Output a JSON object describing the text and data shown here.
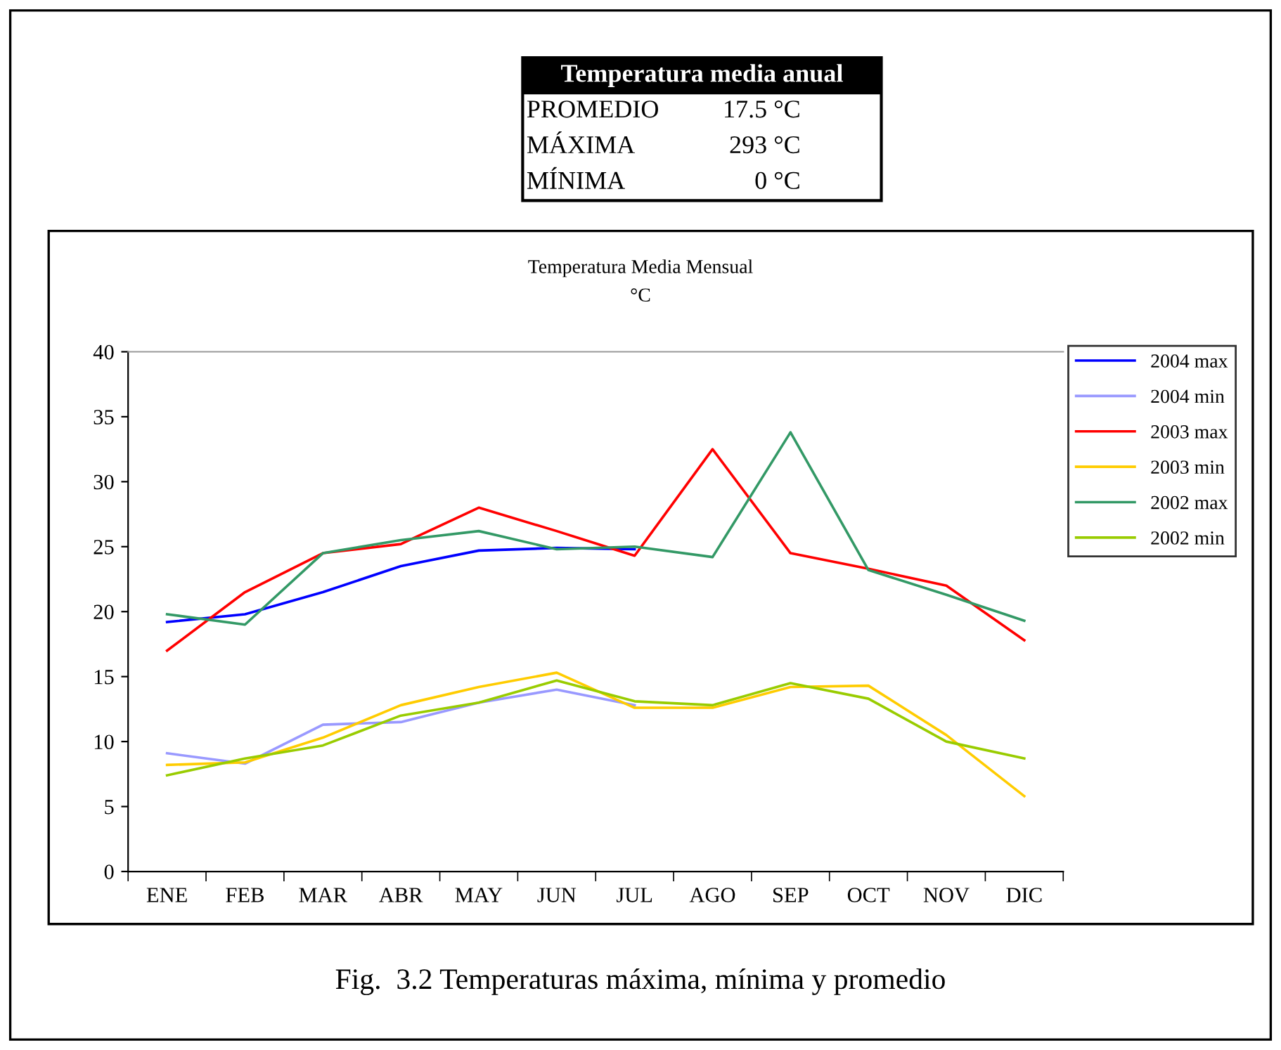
{
  "chart_data": {
    "type": "line",
    "title": "Temperatura Media Mensual",
    "subtitle": "°C",
    "categories": [
      "ENE",
      "FEB",
      "MAR",
      "ABR",
      "MAY",
      "JUN",
      "JUL",
      "AGO",
      "SEP",
      "OCT",
      "NOV",
      "DIC"
    ],
    "series": [
      {
        "name": "2004 max",
        "color": "#0000ff",
        "values": [
          19.2,
          19.8,
          21.5,
          23.5,
          24.7,
          24.9,
          24.8,
          null,
          null,
          null,
          null,
          null
        ]
      },
      {
        "name": "2004 min",
        "color": "#9999ff",
        "values": [
          9.1,
          8.3,
          11.3,
          11.5,
          13.0,
          14.0,
          12.8,
          null,
          null,
          null,
          null,
          null
        ]
      },
      {
        "name": "2003 max",
        "color": "#ff0000",
        "values": [
          17.0,
          21.5,
          24.5,
          25.2,
          28.0,
          26.2,
          24.3,
          32.5,
          24.5,
          23.3,
          22.0,
          17.8
        ]
      },
      {
        "name": "2003 min",
        "color": "#ffcc00",
        "values": [
          8.2,
          8.4,
          10.3,
          12.8,
          14.2,
          15.3,
          12.6,
          12.6,
          14.2,
          14.3,
          10.5,
          5.8
        ]
      },
      {
        "name": "2002 max",
        "color": "#339966",
        "values": [
          19.8,
          19.0,
          24.5,
          25.5,
          26.2,
          24.8,
          25.0,
          24.2,
          33.8,
          23.2,
          21.3,
          19.3
        ]
      },
      {
        "name": "2002 min",
        "color": "#99cc00",
        "values": [
          7.4,
          8.7,
          9.7,
          12.0,
          13.0,
          14.7,
          13.1,
          12.8,
          14.5,
          13.3,
          10.0,
          8.7
        ]
      }
    ],
    "ylim": [
      0,
      40
    ],
    "yticks": [
      0,
      5,
      10,
      15,
      20,
      25,
      30,
      35,
      40
    ],
    "grid": false,
    "legend": "top right",
    "marker": "none",
    "line_style": "solid",
    "annotations": [
      "Temperatura media anual",
      "PROMEDIO",
      "17.5 °C",
      "MÁXIMA",
      "293 °C",
      "MÍNIMA",
      "0 °C",
      "Fig.  3.2 Temperaturas máxima, mínima y promedio"
    ]
  }
}
